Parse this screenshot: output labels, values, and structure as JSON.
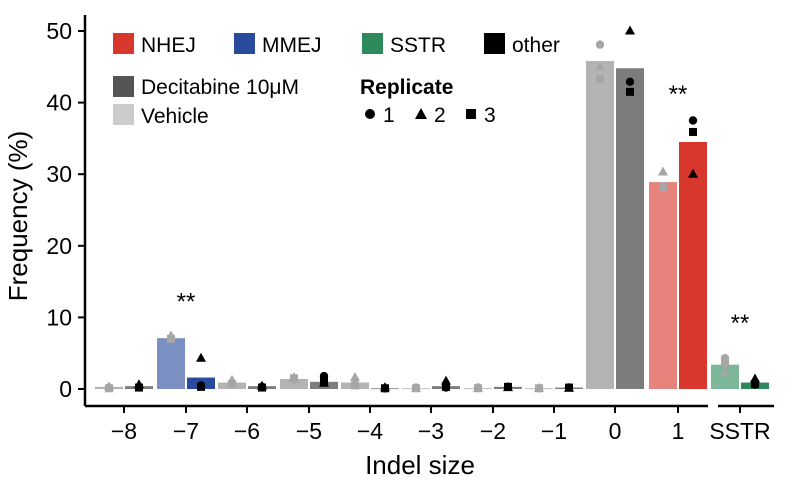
{
  "chart_data": {
    "type": "bar",
    "xlabel": "Indel size",
    "ylabel": "Frequency (%)",
    "ylim": [
      0,
      50
    ],
    "yticks": [
      "0",
      "10",
      "20",
      "30",
      "40",
      "50"
    ],
    "categories": [
      "−8",
      "−7",
      "−6",
      "−5",
      "−4",
      "−3",
      "−2",
      "−1",
      "0",
      "1",
      "SSTR"
    ],
    "series": [
      {
        "name": "Vehicle",
        "values": [
          0.3,
          7.1,
          0.9,
          1.4,
          0.9,
          0.1,
          0.1,
          0.1,
          45.8,
          28.9,
          3.4
        ]
      },
      {
        "name": "Decitabine 10μM",
        "values": [
          0.4,
          1.6,
          0.4,
          1.0,
          0.1,
          0.4,
          0.3,
          0.2,
          44.8,
          34.5,
          0.9
        ]
      }
    ],
    "bar_class": [
      "other",
      "MMEJ",
      "other",
      "other",
      "other",
      "other",
      "other",
      "other",
      "other",
      "NHEJ",
      "SSTR"
    ],
    "class_colors": {
      "NHEJ": "#d7372d",
      "MMEJ": "#2a4a9d",
      "SSTR": "#2e8a5b",
      "other": "#000000"
    },
    "points": [
      {
        "category": "−8",
        "treatment": "Vehicle",
        "values": [
          0.2,
          0.3,
          0.1
        ]
      },
      {
        "category": "−8",
        "treatment": "Decitabine 10μM",
        "values": [
          0.3,
          0.6,
          0.2
        ]
      },
      {
        "category": "−7",
        "treatment": "Vehicle",
        "values": [
          7.0,
          7.4,
          7.0
        ]
      },
      {
        "category": "−7",
        "treatment": "Decitabine 10μM",
        "values": [
          0.5,
          4.3,
          0.3
        ]
      },
      {
        "category": "−6",
        "treatment": "Vehicle",
        "values": [
          0.8,
          1.2,
          0.7
        ]
      },
      {
        "category": "−6",
        "treatment": "Decitabine 10μM",
        "values": [
          0.3,
          0.4,
          0.2
        ]
      },
      {
        "category": "−5",
        "treatment": "Vehicle",
        "values": [
          1.3,
          1.6,
          1.5
        ]
      },
      {
        "category": "−5",
        "treatment": "Decitabine 10μM",
        "values": [
          1.8,
          0.8,
          1.2
        ]
      },
      {
        "category": "−4",
        "treatment": "Vehicle",
        "values": [
          0.6,
          1.6,
          0.5
        ]
      },
      {
        "category": "−4",
        "treatment": "Decitabine 10μM",
        "values": [
          0.1,
          0.2,
          0.1
        ]
      },
      {
        "category": "−3",
        "treatment": "Vehicle",
        "values": [
          0.2,
          0.1,
          0.1
        ]
      },
      {
        "category": "−3",
        "treatment": "Decitabine 10μM",
        "values": [
          0.2,
          1.1,
          0.3
        ]
      },
      {
        "category": "−2",
        "treatment": "Vehicle",
        "values": [
          0.2,
          0.1,
          0.1
        ]
      },
      {
        "category": "−2",
        "treatment": "Decitabine 10μM",
        "values": [
          0.3,
          0.2,
          0.3
        ]
      },
      {
        "category": "−1",
        "treatment": "Vehicle",
        "values": [
          0.1,
          0.1,
          0.1
        ]
      },
      {
        "category": "−1",
        "treatment": "Decitabine 10μM",
        "values": [
          0.2,
          0.1,
          0.2
        ]
      },
      {
        "category": "0",
        "treatment": "Vehicle",
        "values": [
          48.1,
          45.0,
          43.3
        ]
      },
      {
        "category": "0",
        "treatment": "Decitabine 10μM",
        "values": [
          42.9,
          50.0,
          41.5
        ]
      },
      {
        "category": "1",
        "treatment": "Vehicle",
        "values": [
          28.1,
          30.3,
          28.3
        ]
      },
      {
        "category": "1",
        "treatment": "Decitabine 10μM",
        "values": [
          37.5,
          30.0,
          35.9
        ]
      },
      {
        "category": "SSTR",
        "treatment": "Vehicle",
        "values": [
          4.3,
          2.3,
          3.6
        ]
      },
      {
        "category": "SSTR",
        "treatment": "Decitabine 10μM",
        "values": [
          0.6,
          1.4,
          0.7
        ]
      }
    ],
    "annotations": [
      {
        "category": "−7",
        "text": "**",
        "y": 12.5
      },
      {
        "category": "1",
        "text": "**",
        "y": 41.5
      },
      {
        "category": "SSTR",
        "text": "**",
        "y": 9.5
      }
    ],
    "legend": {
      "placement": "top-left",
      "classes": [
        {
          "label": "NHEJ",
          "color": "#d7372d"
        },
        {
          "label": "MMEJ",
          "color": "#2a4a9d"
        },
        {
          "label": "SSTR",
          "color": "#2e8a5b"
        },
        {
          "label": "other",
          "color": "#000000"
        }
      ],
      "treatments": [
        {
          "label": "Decitabine 10μM",
          "color": "#555555"
        },
        {
          "label": "Vehicle",
          "color": "#cccccc"
        }
      ],
      "replicate_title": "Replicate",
      "replicates": [
        {
          "label": "1",
          "shape": "circle"
        },
        {
          "label": "2",
          "shape": "triangle"
        },
        {
          "label": "3",
          "shape": "square"
        }
      ]
    },
    "grid": false
  }
}
